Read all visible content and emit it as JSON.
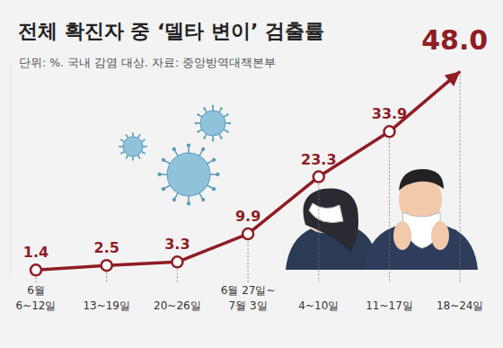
{
  "chart_data": {
    "type": "line",
    "title": "전체 확진자 중 ‘델타 변이’ 검출률",
    "subtitle": "단위: %. 국내 감염 대상. 자료: 중앙방역대책본부",
    "categories": [
      "6월\n6~12일",
      "13~19일",
      "20~26일",
      "6월 27일~\n7월 3일",
      "4~10일",
      "11~17일",
      "18~24일"
    ],
    "values": [
      1.4,
      2.5,
      3.3,
      9.9,
      23.3,
      33.9,
      48.0
    ],
    "value_labels": [
      "1.4",
      "2.5",
      "3.3",
      "9.9",
      "23.3",
      "33.9",
      "48.0"
    ],
    "color": "#8e1d24",
    "ylim": [
      0,
      50
    ],
    "grid": false,
    "data_labels": true,
    "tick_labels": "x",
    "marker": "circle"
  }
}
